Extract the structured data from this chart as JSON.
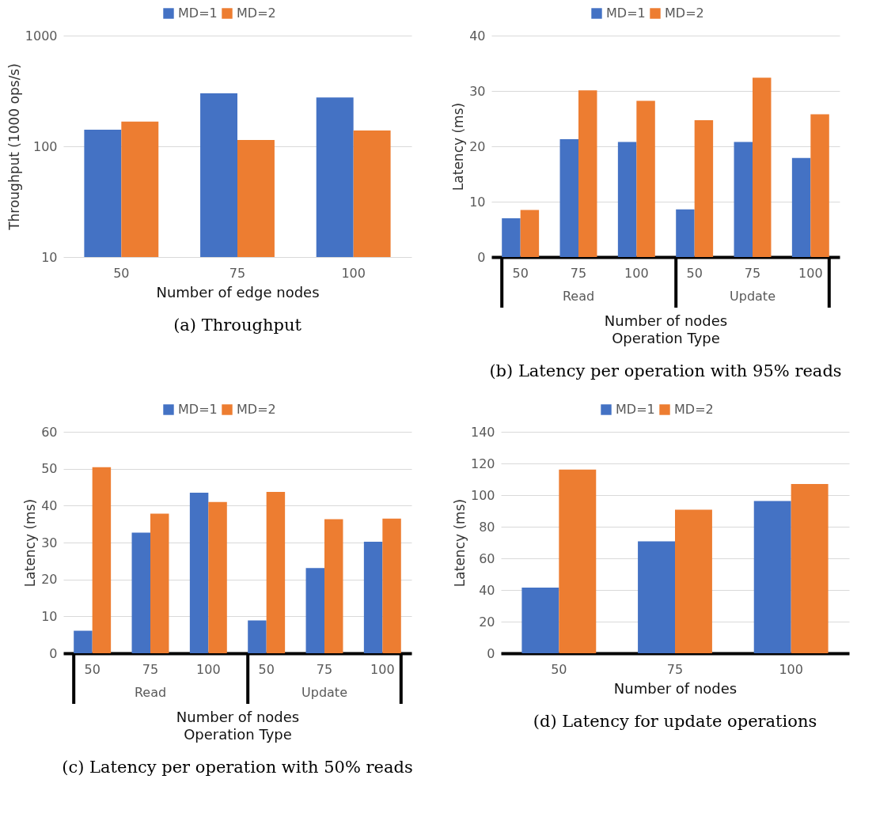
{
  "chart_data": [
    {
      "type": "bar",
      "title": "(a) Throughput",
      "xlabel": "Number of edge nodes",
      "ylabel": "Throughput (1000 ops/s)",
      "categories": [
        "50",
        "75",
        "100"
      ],
      "log": true,
      "ylim": [
        10,
        1000
      ],
      "yticks": [
        10,
        100,
        1000
      ],
      "grid": "y",
      "legend": "top",
      "series": [
        {
          "name": "MD=1",
          "color": "#4472c4",
          "values": [
            141,
            301,
            276
          ]
        },
        {
          "name": "MD=2",
          "color": "#ed7d31",
          "values": [
            167,
            114,
            139
          ]
        }
      ]
    },
    {
      "type": "bar",
      "title": "(b) Latency per operation with 95% reads",
      "xlabel": "Number of nodes",
      "ylabel": "Latency (ms)",
      "categories": [
        "50",
        "75",
        "100",
        "50",
        "75",
        "100"
      ],
      "annotations": [
        "Read",
        "Update",
        "Operation Type"
      ],
      "ylim": [
        0,
        40
      ],
      "yticks": [
        0,
        10,
        20,
        30,
        40
      ],
      "grid": "y",
      "legend": "top",
      "series": [
        {
          "name": "MD=1",
          "color": "#4472c4",
          "values": [
            7.0,
            21.3,
            20.8,
            8.6,
            20.8,
            17.9
          ]
        },
        {
          "name": "MD=2",
          "color": "#ed7d31",
          "values": [
            8.5,
            30.1,
            28.2,
            24.7,
            32.4,
            25.8
          ]
        }
      ]
    },
    {
      "type": "bar",
      "title": "(c) Latency per operation with 50% reads",
      "xlabel": "Number of nodes",
      "ylabel": "Latency (ms)",
      "categories": [
        "50",
        "75",
        "100",
        "50",
        "75",
        "100"
      ],
      "annotations": [
        "Read",
        "Update",
        "Operation Type"
      ],
      "ylim": [
        0,
        60
      ],
      "yticks": [
        0,
        10,
        20,
        30,
        40,
        50,
        60
      ],
      "grid": "y",
      "legend": "top",
      "series": [
        {
          "name": "MD=1",
          "color": "#4472c4",
          "values": [
            6.1,
            32.7,
            43.5,
            8.9,
            23.1,
            30.2
          ]
        },
        {
          "name": "MD=2",
          "color": "#ed7d31",
          "values": [
            50.4,
            37.8,
            41.0,
            43.7,
            36.3,
            36.5
          ]
        }
      ]
    },
    {
      "type": "bar",
      "title": "(d) Latency for update operations",
      "xlabel": "Number of nodes",
      "ylabel": "Latency (ms)",
      "categories": [
        "50",
        "75",
        "100"
      ],
      "ylim": [
        0,
        140
      ],
      "yticks": [
        0,
        20,
        40,
        60,
        80,
        100,
        120,
        140
      ],
      "grid": "y",
      "legend": "top",
      "series": [
        {
          "name": "MD=1",
          "color": "#4472c4",
          "values": [
            41.5,
            70.8,
            96.3
          ]
        },
        {
          "name": "MD=2",
          "color": "#ed7d31",
          "values": [
            116.1,
            90.8,
            107
          ]
        }
      ]
    }
  ]
}
